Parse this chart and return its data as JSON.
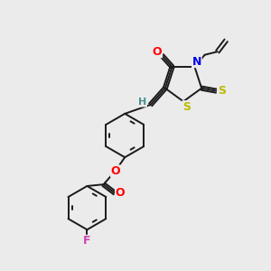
{
  "bg_color": "#ebebeb",
  "bond_color": "#1a1a1a",
  "atom_colors": {
    "O": "#ff0000",
    "N": "#0000ee",
    "S": "#bbbb00",
    "F": "#cc44aa",
    "H": "#4a9090",
    "C": "#1a1a1a"
  },
  "font_size": 8,
  "line_width": 1.4
}
